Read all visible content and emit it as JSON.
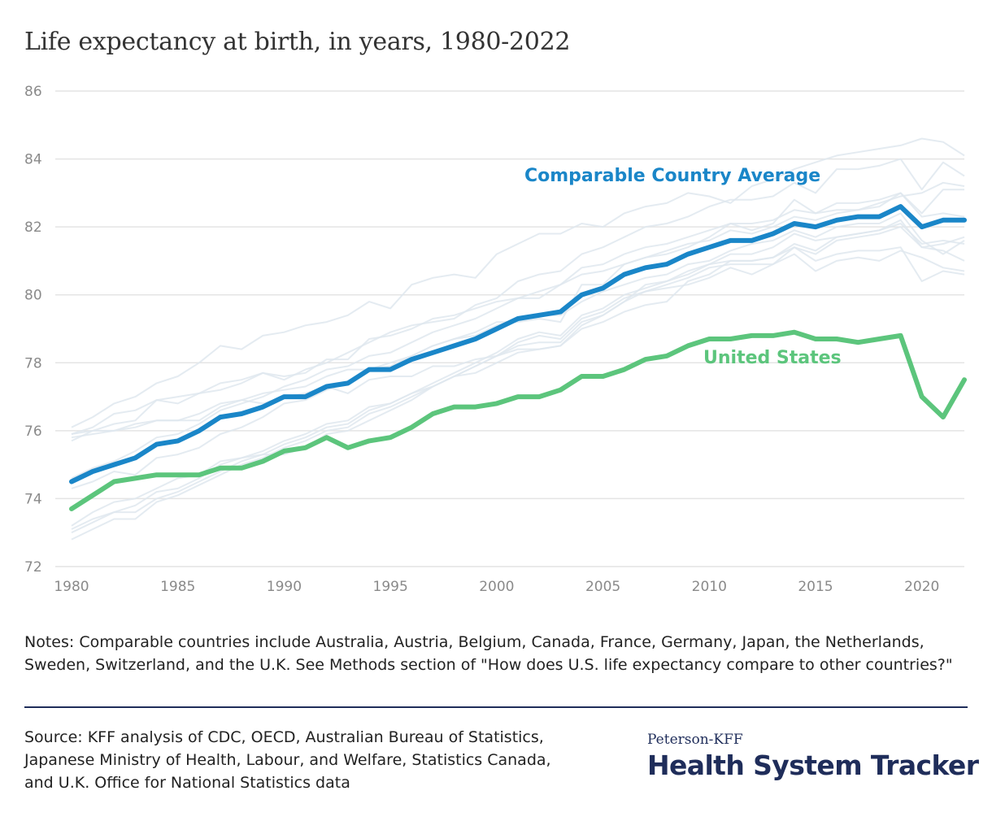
{
  "title": "Life expectancy at birth, in years, 1980-2022",
  "chart_data": {
    "type": "line",
    "title": "Life expectancy at birth, in years, 1980-2022",
    "xlabel": "",
    "ylabel": "",
    "xlim": [
      1980,
      2022
    ],
    "ylim": [
      72,
      86
    ],
    "x_ticks": [
      1980,
      1985,
      1990,
      1995,
      2000,
      2005,
      2010,
      2015,
      2020
    ],
    "y_ticks": [
      72,
      74,
      76,
      78,
      80,
      82,
      84,
      86
    ],
    "grid": true,
    "x": [
      1980,
      1981,
      1982,
      1983,
      1984,
      1985,
      1986,
      1987,
      1988,
      1989,
      1990,
      1991,
      1992,
      1993,
      1994,
      1995,
      1996,
      1997,
      1998,
      1999,
      2000,
      2001,
      2002,
      2003,
      2004,
      2005,
      2006,
      2007,
      2008,
      2009,
      2010,
      2011,
      2012,
      2013,
      2014,
      2015,
      2016,
      2017,
      2018,
      2019,
      2020,
      2021,
      2022
    ],
    "series": [
      {
        "name": "Comparable Country Average",
        "color": "#1a86c8",
        "values": [
          74.5,
          74.8,
          75.0,
          75.2,
          75.6,
          75.7,
          76.0,
          76.4,
          76.5,
          76.7,
          77.0,
          77.0,
          77.3,
          77.4,
          77.8,
          77.8,
          78.1,
          78.3,
          78.5,
          78.7,
          79.0,
          79.3,
          79.4,
          79.5,
          80.0,
          80.2,
          80.6,
          80.8,
          80.9,
          81.2,
          81.4,
          81.6,
          81.6,
          81.8,
          82.1,
          82.0,
          82.2,
          82.3,
          82.3,
          82.6,
          82.0,
          82.2,
          82.2
        ]
      },
      {
        "name": "United States",
        "color": "#5cc57c",
        "values": [
          73.7,
          74.1,
          74.5,
          74.6,
          74.7,
          74.7,
          74.7,
          74.9,
          74.9,
          75.1,
          75.4,
          75.5,
          75.8,
          75.5,
          75.7,
          75.8,
          76.1,
          76.5,
          76.7,
          76.7,
          76.8,
          77.0,
          77.0,
          77.2,
          77.6,
          77.6,
          77.8,
          78.1,
          78.2,
          78.5,
          78.7,
          78.7,
          78.8,
          78.8,
          78.9,
          78.7,
          78.7,
          78.6,
          78.7,
          78.8,
          77.0,
          76.4,
          77.5
        ]
      }
    ],
    "background_series": [
      {
        "values": [
          74.6,
          74.9,
          75.1,
          75.4,
          75.8,
          75.9,
          76.2,
          76.6,
          76.8,
          77.0,
          77.3,
          77.5,
          77.8,
          77.9,
          78.2,
          78.3,
          78.6,
          78.9,
          79.1,
          79.3,
          79.6,
          79.9,
          80.1,
          80.3,
          80.8,
          80.9,
          81.2,
          81.4,
          81.5,
          81.7,
          81.9,
          82.1,
          82.1,
          82.2,
          82.5,
          82.4,
          82.5,
          82.5,
          82.7,
          82.9,
          83.0,
          83.3,
          83.2
        ]
      },
      {
        "values": [
          72.8,
          73.1,
          73.4,
          73.4,
          73.9,
          74.1,
          74.4,
          74.7,
          75.0,
          75.2,
          75.5,
          75.7,
          76.0,
          76.1,
          76.5,
          76.7,
          77.0,
          77.3,
          77.6,
          77.9,
          78.2,
          78.6,
          78.8,
          78.7,
          79.3,
          79.5,
          79.9,
          80.1,
          80.3,
          80.5,
          80.8,
          80.9,
          80.9,
          80.9,
          81.4,
          81.2,
          81.6,
          81.7,
          81.8,
          82.0,
          81.4,
          81.3,
          81.0
        ]
      },
      {
        "values": [
          73.0,
          73.3,
          73.6,
          73.6,
          74.0,
          74.2,
          74.5,
          74.8,
          75.1,
          75.3,
          75.6,
          75.8,
          76.1,
          76.2,
          76.6,
          76.8,
          77.1,
          77.4,
          77.7,
          78.0,
          78.3,
          78.7,
          78.9,
          78.8,
          79.4,
          79.6,
          80.0,
          80.2,
          80.4,
          80.6,
          80.9,
          81.0,
          81.0,
          81.1,
          81.5,
          81.3,
          81.7,
          81.8,
          81.9,
          82.1,
          81.5,
          81.6,
          81.5
        ]
      },
      {
        "values": [
          75.8,
          75.9,
          76.0,
          76.1,
          76.3,
          76.3,
          76.5,
          76.8,
          76.9,
          77.1,
          77.2,
          77.3,
          77.6,
          77.8,
          77.8,
          78.0,
          78.2,
          78.5,
          78.7,
          78.8,
          79.1,
          79.3,
          79.4,
          79.4,
          79.8,
          80.1,
          80.3,
          80.5,
          80.6,
          80.9,
          81.0,
          81.3,
          81.5,
          81.6,
          81.9,
          81.7,
          82.0,
          82.1,
          82.1,
          82.4,
          81.6,
          81.2,
          81.6
        ]
      },
      {
        "values": [
          74.3,
          74.5,
          74.8,
          74.7,
          75.2,
          75.3,
          75.5,
          75.9,
          76.1,
          76.4,
          76.8,
          76.9,
          77.2,
          77.4,
          77.8,
          77.9,
          78.2,
          78.5,
          78.7,
          78.9,
          79.2,
          79.2,
          79.3,
          79.2,
          80.3,
          80.3,
          80.9,
          81.1,
          81.2,
          81.4,
          81.7,
          82.1,
          81.9,
          82.1,
          82.8,
          82.4,
          82.7,
          82.7,
          82.8,
          83.0,
          82.3,
          82.4,
          82.3
        ]
      },
      {
        "values": [
          73.1,
          73.4,
          73.6,
          73.8,
          74.2,
          74.3,
          74.6,
          75.0,
          75.2,
          75.3,
          75.3,
          75.5,
          75.9,
          76.0,
          76.3,
          76.6,
          76.9,
          77.3,
          77.6,
          77.9,
          78.2,
          78.5,
          78.6,
          78.6,
          79.2,
          79.4,
          79.8,
          80.1,
          80.2,
          80.3,
          80.5,
          80.8,
          80.6,
          80.9,
          81.2,
          80.7,
          81.0,
          81.1,
          81.0,
          81.3,
          81.1,
          80.8,
          80.7
        ]
      },
      {
        "values": [
          76.1,
          76.4,
          76.8,
          77.0,
          77.4,
          77.6,
          78.0,
          78.5,
          78.4,
          78.8,
          78.9,
          79.1,
          79.2,
          79.4,
          79.8,
          79.6,
          80.3,
          80.5,
          80.6,
          80.5,
          81.2,
          81.5,
          81.8,
          81.8,
          82.1,
          82.0,
          82.4,
          82.6,
          82.7,
          83.0,
          82.9,
          82.7,
          83.2,
          83.4,
          83.7,
          83.9,
          84.1,
          84.2,
          84.3,
          84.4,
          84.6,
          84.5,
          84.1
        ]
      },
      {
        "values": [
          75.9,
          76.0,
          76.0,
          76.2,
          76.3,
          76.3,
          76.3,
          76.7,
          76.9,
          76.8,
          77.0,
          77.1,
          77.3,
          77.1,
          77.5,
          77.6,
          77.6,
          77.9,
          77.9,
          78.1,
          78.2,
          78.4,
          78.4,
          78.5,
          79.1,
          79.4,
          79.8,
          80.3,
          80.4,
          80.7,
          80.9,
          81.2,
          81.2,
          81.4,
          81.8,
          81.6,
          81.7,
          81.8,
          81.9,
          82.2,
          81.4,
          81.5,
          81.7
        ]
      },
      {
        "values": [
          75.9,
          76.1,
          76.5,
          76.6,
          76.9,
          76.8,
          77.1,
          77.2,
          77.4,
          77.7,
          77.6,
          77.7,
          78.1,
          78.1,
          78.7,
          78.8,
          79.0,
          79.3,
          79.4,
          79.6,
          79.8,
          79.9,
          79.9,
          80.3,
          80.6,
          80.7,
          80.9,
          81.1,
          81.3,
          81.5,
          81.6,
          81.9,
          81.8,
          82.0,
          82.3,
          82.2,
          82.4,
          82.5,
          82.6,
          83.0,
          82.4,
          83.1,
          83.1
        ]
      },
      {
        "values": [
          75.7,
          76.0,
          76.2,
          76.3,
          76.9,
          77.0,
          77.1,
          77.4,
          77.5,
          77.7,
          77.5,
          77.8,
          78.0,
          78.3,
          78.6,
          78.9,
          79.1,
          79.2,
          79.3,
          79.7,
          79.9,
          80.4,
          80.6,
          80.7,
          81.2,
          81.4,
          81.7,
          82.0,
          82.1,
          82.3,
          82.6,
          82.8,
          82.8,
          82.9,
          83.3,
          83.0,
          83.7,
          83.7,
          83.8,
          84.0,
          83.1,
          83.9,
          83.5
        ]
      },
      {
        "values": [
          73.2,
          73.6,
          73.9,
          74.0,
          74.3,
          74.6,
          74.7,
          75.1,
          75.2,
          75.4,
          75.7,
          75.9,
          76.2,
          76.3,
          76.7,
          76.8,
          77.1,
          77.3,
          77.6,
          77.7,
          78.0,
          78.3,
          78.4,
          78.5,
          79.0,
          79.2,
          79.5,
          79.7,
          79.8,
          80.4,
          80.6,
          81.0,
          81.0,
          81.1,
          81.4,
          81.0,
          81.2,
          81.3,
          81.3,
          81.4,
          80.4,
          80.7,
          80.6
        ]
      }
    ]
  },
  "notes": "Notes: Comparable countries include Australia, Austria, Belgium, Canada, France, Germany, Japan, the Netherlands, Sweden, Switzerland, and the U.K. See Methods section of \"How does U.S. life expectancy compare to other countries?\"",
  "source": "Source: KFF analysis of CDC, OECD, Australian Bureau of Statistics, Japanese Ministry of Health, Labour, and Welfare, Statistics Canada, and U.K. Office for National Statistics data",
  "logo": {
    "small": "Peterson-KFF",
    "big": "Health System Tracker"
  }
}
